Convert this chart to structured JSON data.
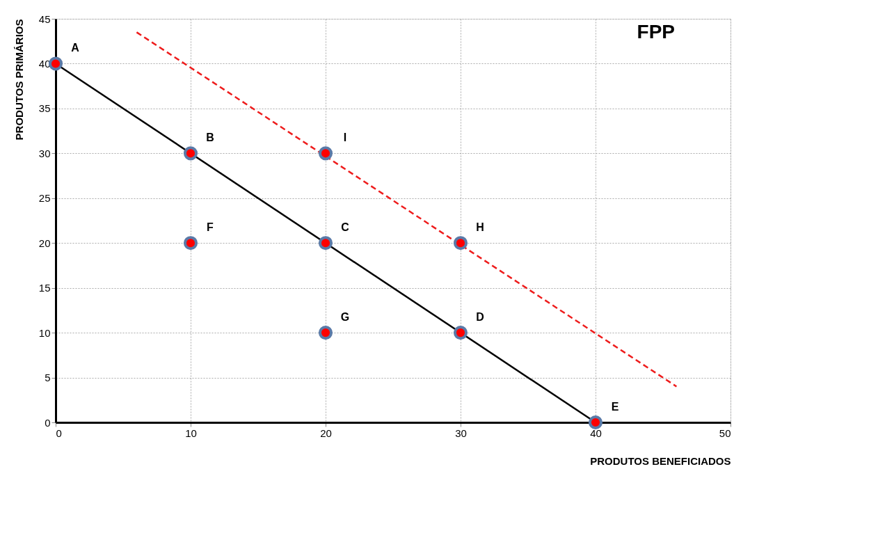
{
  "chart_data": {
    "type": "scatter",
    "title": "FPP",
    "xlabel": "PRODUTOS BENEFICIADOS",
    "ylabel": "PRODUTOS PRIMÁRIOS",
    "xlim": [
      0,
      50
    ],
    "xticks": [
      0,
      10,
      20,
      30,
      40,
      50
    ],
    "ylim": [
      0,
      45
    ],
    "yticks": [
      0,
      5,
      10,
      15,
      20,
      25,
      30,
      35,
      40,
      45
    ],
    "grid": true,
    "marker": "circle",
    "series": [
      {
        "type": "line",
        "marker": "none",
        "color": "#000000",
        "line_style": "solid",
        "x": [
          0,
          40
        ],
        "values": [
          40,
          0
        ]
      },
      {
        "type": "line",
        "marker": "none",
        "color": "#ee1c1c",
        "line_style": "dashed",
        "x": [
          6,
          46
        ],
        "values": [
          43.5,
          4
        ]
      },
      {
        "color": "#ff0000",
        "x": [
          0,
          10,
          20,
          30,
          40,
          10,
          20,
          30,
          20
        ],
        "values": [
          40,
          30,
          20,
          10,
          0,
          20,
          10,
          20,
          30
        ]
      }
    ],
    "annotations": [
      {
        "text": "A",
        "x": 0,
        "y": 40
      },
      {
        "text": "B",
        "x": 10,
        "y": 30
      },
      {
        "text": "C",
        "x": 20,
        "y": 20
      },
      {
        "text": "D",
        "x": 30,
        "y": 10
      },
      {
        "text": "E",
        "x": 40,
        "y": 0
      },
      {
        "text": "F",
        "x": 10,
        "y": 20
      },
      {
        "text": "G",
        "x": 20,
        "y": 10
      },
      {
        "text": "H",
        "x": 30,
        "y": 20
      },
      {
        "text": "I",
        "x": 20,
        "y": 30
      }
    ]
  }
}
